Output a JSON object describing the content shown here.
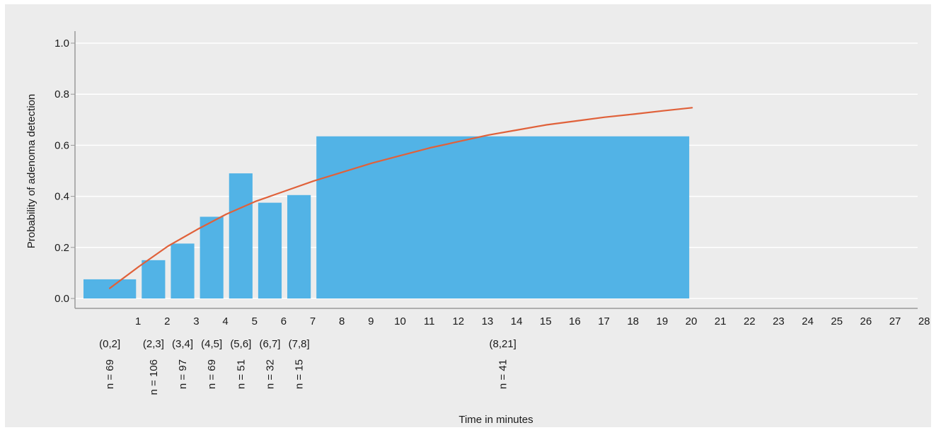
{
  "chart_data": {
    "type": "bar",
    "xlabel": "Time in minutes",
    "ylabel": "Probability of adenoma detection",
    "ylim": [
      0,
      1.0
    ],
    "yticks": [
      "0.0",
      "0.2",
      "0.4",
      "0.6",
      "0.8",
      "1.0"
    ],
    "xticks": [
      "1",
      "2",
      "3",
      "4",
      "5",
      "6",
      "7",
      "8",
      "9",
      "10",
      "11",
      "12",
      "13",
      "14",
      "15",
      "16",
      "17",
      "18",
      "19",
      "20",
      "21",
      "22",
      "23",
      "24",
      "25",
      "26",
      "27",
      "28"
    ],
    "grid": "horizontal",
    "bar_color": "#52b3e6",
    "curve_color": "#e0613a",
    "background_color": "#ececec",
    "bins": [
      {
        "label": "(0,2]",
        "n_label": "n = 69",
        "from": 0,
        "to": 2,
        "value": 0.075
      },
      {
        "label": "(2,3]",
        "n_label": "n = 106",
        "from": 2,
        "to": 3,
        "value": 0.15
      },
      {
        "label": "(3,4]",
        "n_label": "n = 97",
        "from": 3,
        "to": 4,
        "value": 0.215
      },
      {
        "label": "(4,5]",
        "n_label": "n = 69",
        "from": 4,
        "to": 5,
        "value": 0.32
      },
      {
        "label": "(5,6]",
        "n_label": "n = 51",
        "from": 5,
        "to": 6,
        "value": 0.49
      },
      {
        "label": "(6,7]",
        "n_label": "n = 32",
        "from": 6,
        "to": 7,
        "value": 0.375
      },
      {
        "label": "(7,8]",
        "n_label": "n = 15",
        "from": 7,
        "to": 8,
        "value": 0.405
      },
      {
        "label": "(8,21]",
        "n_label": "n = 41",
        "from": 8,
        "to": 21,
        "value": 0.635
      }
    ],
    "curve": {
      "x": [
        1,
        2,
        3,
        4,
        5,
        6,
        7,
        8,
        9,
        10,
        11,
        12,
        13,
        14,
        15,
        16,
        17,
        18,
        19,
        20,
        21
      ],
      "y": [
        0.04,
        0.125,
        0.205,
        0.27,
        0.33,
        0.38,
        0.42,
        0.46,
        0.495,
        0.53,
        0.56,
        0.59,
        0.615,
        0.64,
        0.66,
        0.68,
        0.695,
        0.71,
        0.722,
        0.735,
        0.747
      ]
    }
  }
}
